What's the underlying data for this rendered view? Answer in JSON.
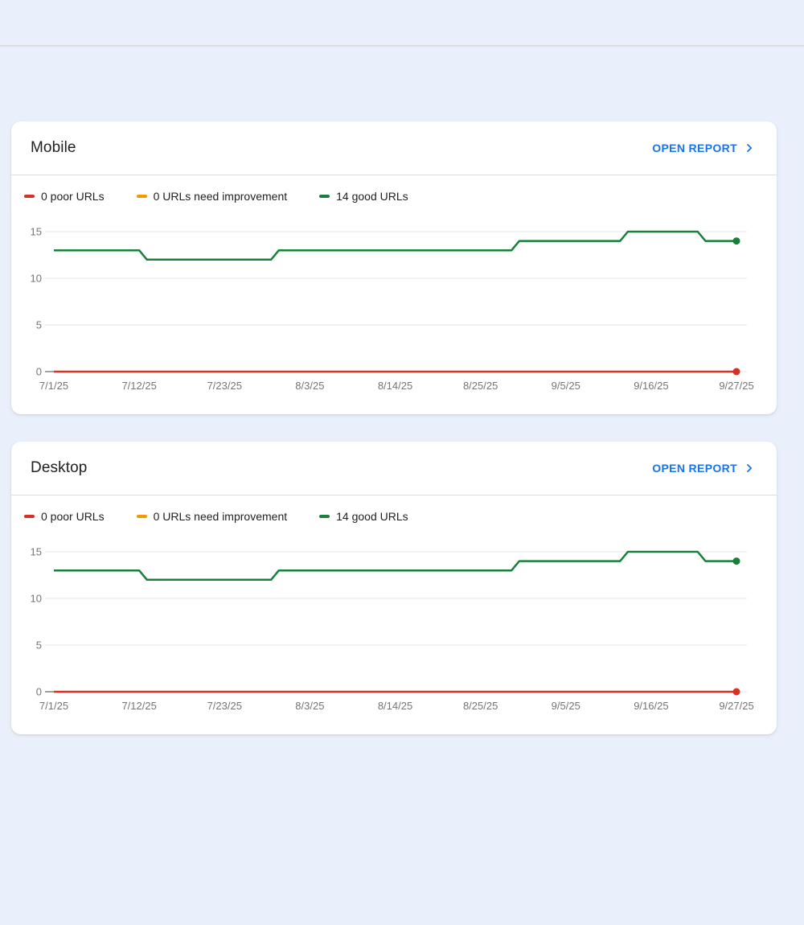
{
  "page": {
    "background_color": "#eaf0fb",
    "top_divider_color": "#d8dade",
    "link_color": "#1a73e8"
  },
  "cards": [
    {
      "title": "Mobile",
      "open_report_label": "OPEN REPORT",
      "legend": [
        {
          "label": "0 poor URLs",
          "color": "#d93025"
        },
        {
          "label": "0 URLs need improvement",
          "color": "#f29900"
        },
        {
          "label": "14 good URLs",
          "color": "#188038"
        }
      ]
    },
    {
      "title": "Desktop",
      "open_report_label": "OPEN REPORT",
      "legend": [
        {
          "label": "0 poor URLs",
          "color": "#d93025"
        },
        {
          "label": "0 URLs need improvement",
          "color": "#f29900"
        },
        {
          "label": "14 good URLs",
          "color": "#188038"
        }
      ]
    }
  ],
  "chart_data": [
    {
      "type": "line",
      "title": "Mobile",
      "x_axis": {
        "unit": "date",
        "tick_labels": [
          "7/1/25",
          "7/12/25",
          "7/23/25",
          "8/3/25",
          "8/14/25",
          "8/25/25",
          "9/5/25",
          "9/16/25",
          "9/27/25"
        ],
        "tick_days": [
          0,
          11,
          22,
          33,
          44,
          55,
          66,
          77,
          88
        ]
      },
      "y_axis": {
        "ticks": [
          0,
          5,
          10,
          15
        ],
        "range": [
          0,
          15
        ],
        "grid": true
      },
      "series": [
        {
          "name": "14 good URLs",
          "color": "#188038",
          "end_dot": true,
          "points_day_value": [
            [
              0,
              13
            ],
            [
              11,
              13
            ],
            [
              12,
              12
            ],
            [
              28,
              12
            ],
            [
              29,
              13
            ],
            [
              59,
              13
            ],
            [
              60,
              14
            ],
            [
              73,
              14
            ],
            [
              74,
              15
            ],
            [
              83,
              15
            ],
            [
              84,
              14
            ],
            [
              88,
              14
            ]
          ]
        },
        {
          "name": "0 URLs need improvement",
          "color": "#f29900",
          "end_dot": false,
          "points_day_value": []
        },
        {
          "name": "0 poor URLs",
          "color": "#d93025",
          "end_dot": true,
          "points_day_value": [
            [
              0,
              0
            ],
            [
              88,
              0
            ]
          ]
        }
      ]
    },
    {
      "type": "line",
      "title": "Desktop",
      "x_axis": {
        "unit": "date",
        "tick_labels": [
          "7/1/25",
          "7/12/25",
          "7/23/25",
          "8/3/25",
          "8/14/25",
          "8/25/25",
          "9/5/25",
          "9/16/25",
          "9/27/25"
        ],
        "tick_days": [
          0,
          11,
          22,
          33,
          44,
          55,
          66,
          77,
          88
        ]
      },
      "y_axis": {
        "ticks": [
          0,
          5,
          10,
          15
        ],
        "range": [
          0,
          15
        ],
        "grid": true
      },
      "series": [
        {
          "name": "14 good URLs",
          "color": "#188038",
          "end_dot": true,
          "points_day_value": [
            [
              0,
              13
            ],
            [
              11,
              13
            ],
            [
              12,
              12
            ],
            [
              28,
              12
            ],
            [
              29,
              13
            ],
            [
              59,
              13
            ],
            [
              60,
              14
            ],
            [
              73,
              14
            ],
            [
              74,
              15
            ],
            [
              83,
              15
            ],
            [
              84,
              14
            ],
            [
              88,
              14
            ]
          ]
        },
        {
          "name": "0 URLs need improvement",
          "color": "#f29900",
          "end_dot": false,
          "points_day_value": []
        },
        {
          "name": "0 poor URLs",
          "color": "#d93025",
          "end_dot": true,
          "points_day_value": [
            [
              0,
              0
            ],
            [
              88,
              0
            ]
          ]
        }
      ]
    }
  ]
}
